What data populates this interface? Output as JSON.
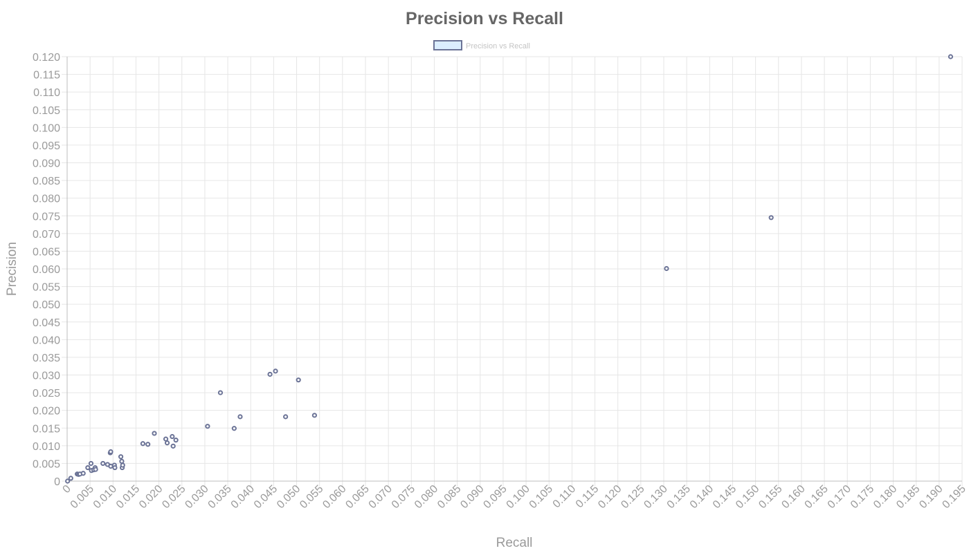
{
  "chart_data": {
    "type": "scatter",
    "title": "Precision vs Recall",
    "xlabel": "Recall",
    "ylabel": "Precision",
    "xlim": [
      0,
      0.195
    ],
    "ylim": [
      0,
      0.12
    ],
    "x_step": 0.005,
    "y_step": 0.005,
    "grid": true,
    "legend_position": "top",
    "colors": {
      "point": "#6b7396",
      "legend_fill": "#dbeeff",
      "legend_stroke": "#6b7396"
    },
    "series": [
      {
        "name": "Precision vs Recall",
        "points": [
          [
            0.0001,
            0.0
          ],
          [
            0.0008,
            0.0008
          ],
          [
            0.0022,
            0.002
          ],
          [
            0.0025,
            0.0019
          ],
          [
            0.0028,
            0.002
          ],
          [
            0.0035,
            0.0022
          ],
          [
            0.0045,
            0.0038
          ],
          [
            0.0052,
            0.005
          ],
          [
            0.0053,
            0.003
          ],
          [
            0.0058,
            0.0032
          ],
          [
            0.0061,
            0.0038
          ],
          [
            0.0062,
            0.0033
          ],
          [
            0.0078,
            0.005
          ],
          [
            0.0088,
            0.0047
          ],
          [
            0.0094,
            0.008
          ],
          [
            0.0095,
            0.0083
          ],
          [
            0.0095,
            0.0042
          ],
          [
            0.0103,
            0.0045
          ],
          [
            0.0104,
            0.0038
          ],
          [
            0.0117,
            0.0069
          ],
          [
            0.0119,
            0.0056
          ],
          [
            0.012,
            0.0038
          ],
          [
            0.0121,
            0.0045
          ],
          [
            0.0165,
            0.0106
          ],
          [
            0.0176,
            0.0104
          ],
          [
            0.019,
            0.0135
          ],
          [
            0.0215,
            0.0119
          ],
          [
            0.0218,
            0.0108
          ],
          [
            0.0229,
            0.0126
          ],
          [
            0.0231,
            0.0099
          ],
          [
            0.0237,
            0.0116
          ],
          [
            0.0306,
            0.0155
          ],
          [
            0.0334,
            0.025
          ],
          [
            0.0364,
            0.0149
          ],
          [
            0.0377,
            0.0182
          ],
          [
            0.0442,
            0.0302
          ],
          [
            0.0454,
            0.0311
          ],
          [
            0.0476,
            0.0182
          ],
          [
            0.0504,
            0.0286
          ],
          [
            0.0539,
            0.0186
          ],
          [
            0.1306,
            0.0601
          ],
          [
            0.1534,
            0.0745
          ],
          [
            0.1925,
            0.12
          ]
        ]
      }
    ]
  }
}
